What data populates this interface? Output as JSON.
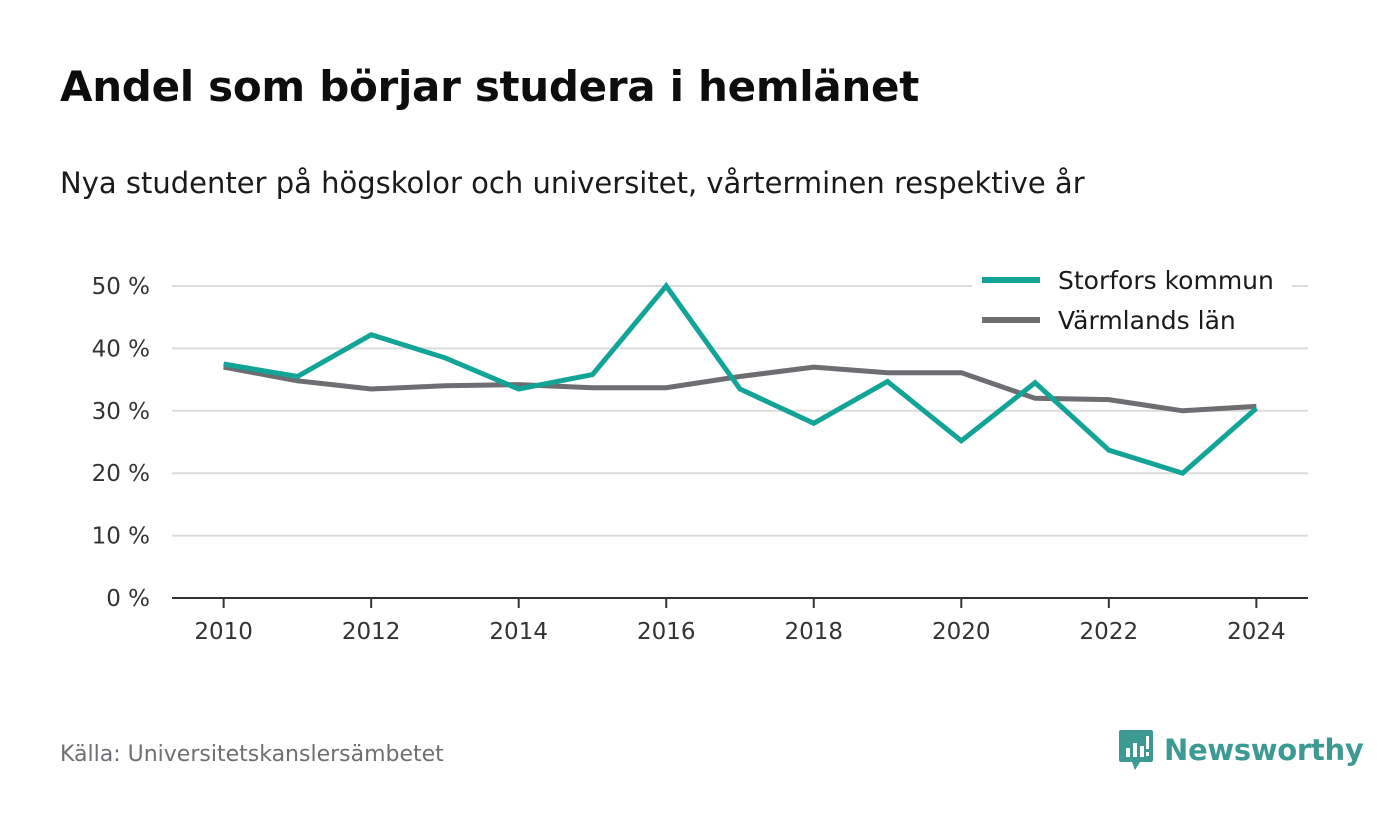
{
  "title": "Andel som börjar studera i hemlänet",
  "subtitle": "Nya studenter på högskolor och universitet, vårterminen respektive år",
  "source": "Källa: Universitetskanslersämbetet",
  "brand": "Newsworthy",
  "colors": {
    "storfors": "#12a497",
    "varmland": "#6d6d72",
    "grid": "#dcdcdc",
    "axis": "#333333",
    "brand": "#3d9a92"
  },
  "chart_data": {
    "type": "line",
    "x": [
      2010,
      2011,
      2012,
      2013,
      2014,
      2015,
      2016,
      2017,
      2018,
      2019,
      2020,
      2021,
      2022,
      2023,
      2024
    ],
    "series": [
      {
        "name": "Storfors kommun",
        "values": [
          37.5,
          35.5,
          42.2,
          38.5,
          33.5,
          35.8,
          50.0,
          33.5,
          28.0,
          34.7,
          25.2,
          34.5,
          23.7,
          20.0,
          30.4
        ]
      },
      {
        "name": "Värmlands län",
        "values": [
          37.0,
          34.8,
          33.5,
          34.0,
          34.2,
          33.7,
          33.7,
          35.5,
          37.0,
          36.1,
          36.1,
          32.0,
          31.8,
          30.0,
          30.7
        ]
      }
    ],
    "xticks": [
      2010,
      2012,
      2014,
      2016,
      2018,
      2020,
      2022,
      2024
    ],
    "xtick_labels": [
      "2010",
      "2012",
      "2014",
      "2016",
      "2018",
      "2020",
      "2022",
      "2024"
    ],
    "yticks": [
      0,
      10,
      20,
      30,
      40,
      50
    ],
    "ytick_labels": [
      "0 %",
      "10 %",
      "20 %",
      "30 %",
      "40 %",
      "50 %"
    ],
    "xlim": [
      2009.3,
      2024.7
    ],
    "ylim": [
      0,
      50
    ],
    "grid": true,
    "legend": "top-right",
    "xlabel": "",
    "ylabel": ""
  }
}
